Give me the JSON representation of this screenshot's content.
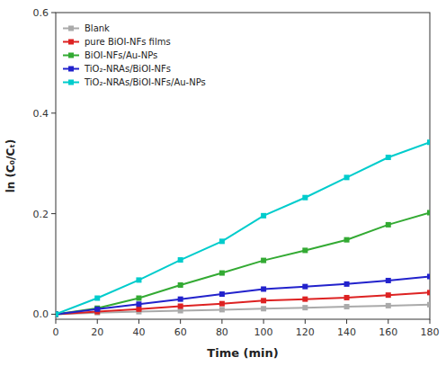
{
  "chart_data": {
    "type": "line",
    "xlabel": "Time (min)",
    "ylabel": "ln (C₀/Cₜ)",
    "x": [
      0,
      20,
      40,
      60,
      80,
      100,
      120,
      140,
      160,
      180
    ],
    "xlim": [
      0,
      180
    ],
    "xticks": [
      0,
      20,
      40,
      60,
      80,
      100,
      120,
      140,
      160,
      180
    ],
    "ylim": [
      -0.01,
      0.6
    ],
    "yticks": [
      {
        "value": 0.0,
        "label": "0.0"
      },
      0.2,
      0.4,
      0.6
    ],
    "series": [
      {
        "name": "Blank",
        "color": "#aaaaaa",
        "values": [
          0.0,
          0.003,
          0.005,
          0.007,
          0.009,
          0.011,
          0.013,
          0.015,
          0.017,
          0.019
        ]
      },
      {
        "name": "pure BiOI-NFs films",
        "color": "#dd2222",
        "values": [
          0.0,
          0.005,
          0.01,
          0.016,
          0.021,
          0.027,
          0.03,
          0.033,
          0.038,
          0.043
        ]
      },
      {
        "name": "BiOI-NFs/Au-NPs",
        "color": "#33aa33",
        "values": [
          0.0,
          0.012,
          0.032,
          0.058,
          0.082,
          0.107,
          0.127,
          0.148,
          0.178,
          0.202
        ]
      },
      {
        "name": "TiO₂-NRAs/BiOI-NFs",
        "color": "#2222cc",
        "values": [
          0.0,
          0.01,
          0.02,
          0.03,
          0.04,
          0.05,
          0.055,
          0.06,
          0.067,
          0.075
        ]
      },
      {
        "name": "TiO₂-NRAs/BiOI-NFs/Au-NPs",
        "color": "#00cccc",
        "values": [
          0.0,
          0.032,
          0.068,
          0.108,
          0.145,
          0.196,
          0.232,
          0.272,
          0.312,
          0.342
        ]
      }
    ],
    "marker": "square",
    "line_style": "solid",
    "legend": "upper left",
    "grid": false
  }
}
